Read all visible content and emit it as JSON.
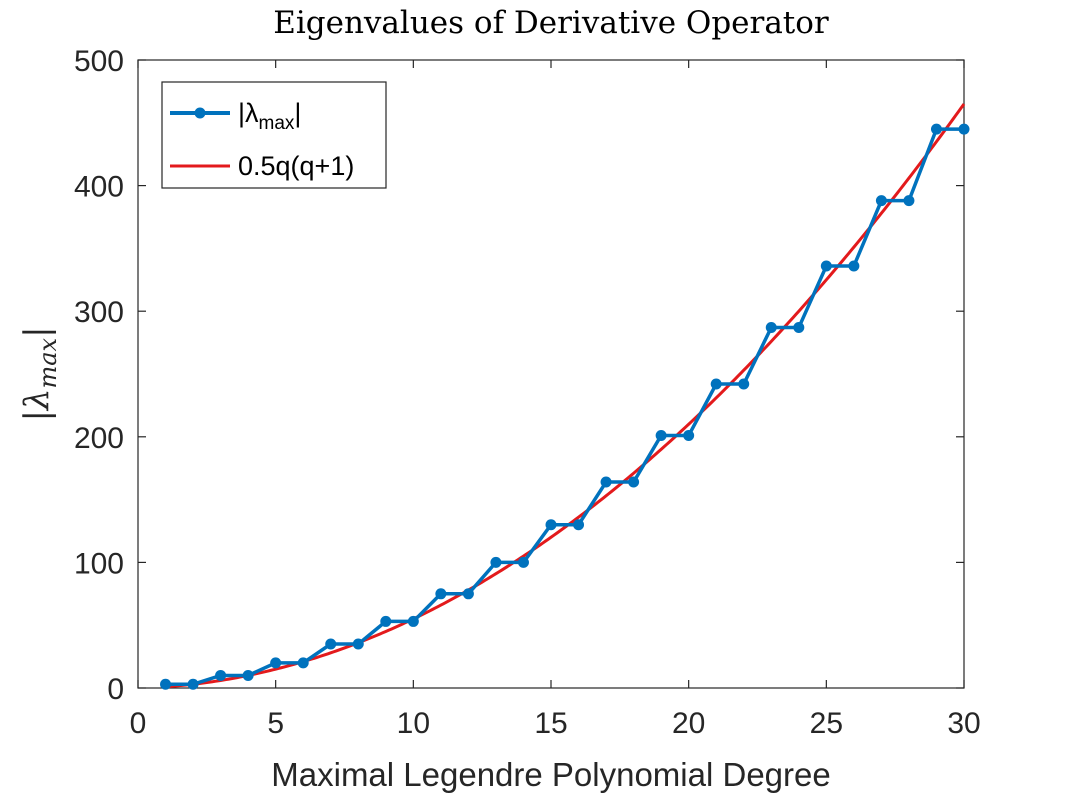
{
  "chart_data": {
    "type": "line",
    "title": "Eigenvalues of Derivative Operator",
    "xlabel": "Maximal Legendre Polynomial Degree",
    "ylabel": "|λmax|",
    "xlim": [
      0,
      30
    ],
    "ylim": [
      0,
      500
    ],
    "xticks": [
      0,
      5,
      10,
      15,
      20,
      25,
      30
    ],
    "yticks": [
      0,
      100,
      200,
      300,
      400,
      500
    ],
    "grid": false,
    "legend_position": "top-left",
    "series": [
      {
        "name": "|λmax|",
        "legend_main": "|λ",
        "legend_sub": "max",
        "legend_tail": "|",
        "style": "line-markers",
        "color": "#0072BD",
        "x": [
          1,
          2,
          3,
          4,
          5,
          6,
          7,
          8,
          9,
          10,
          11,
          12,
          13,
          14,
          15,
          16,
          17,
          18,
          19,
          20,
          21,
          22,
          23,
          24,
          25,
          26,
          27,
          28,
          29,
          30
        ],
        "y": [
          3,
          3,
          10,
          10,
          20,
          20,
          35,
          35,
          53,
          53,
          75,
          75,
          100,
          100,
          130,
          130,
          164,
          164,
          201,
          201,
          242,
          242,
          287,
          287,
          336,
          336,
          388,
          388,
          445,
          445
        ]
      },
      {
        "name": "0.5q(q+1)",
        "style": "line",
        "color": "#E31A1C",
        "formula": "0.5*q*(q+1)",
        "x_range": [
          1,
          30
        ]
      }
    ]
  }
}
